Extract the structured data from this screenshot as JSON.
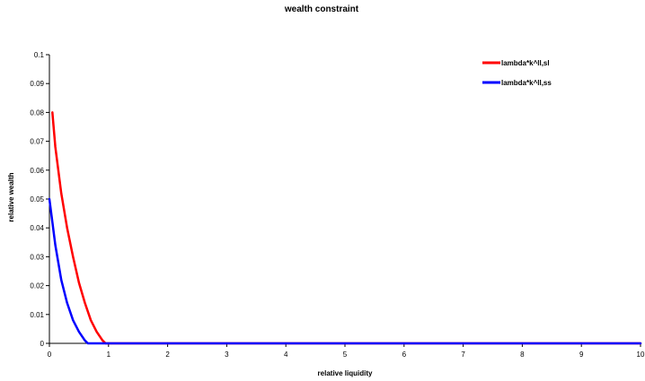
{
  "chart_data": {
    "type": "line",
    "title": "wealth constraint",
    "xlabel": "relative liquidity",
    "ylabel": "relative wealth",
    "xlim": [
      0,
      10
    ],
    "ylim": [
      0,
      0.1
    ],
    "x_ticks": [
      "0",
      "1",
      "2",
      "3",
      "4",
      "5",
      "6",
      "7",
      "8",
      "9",
      "10"
    ],
    "y_ticks": [
      "0",
      "0.01",
      "0.02",
      "0.03",
      "0.04",
      "0.05",
      "0.06",
      "0.07",
      "0.08",
      "0.09",
      "0.1"
    ],
    "grid": false,
    "legend_position": "top-right",
    "series": [
      {
        "name": "lambda*k^ll,sl",
        "color": "#ff0000",
        "x": [
          0.05,
          0.1,
          0.2,
          0.3,
          0.4,
          0.5,
          0.6,
          0.7,
          0.8,
          0.9,
          0.95,
          10
        ],
        "y": [
          0.08,
          0.068,
          0.052,
          0.04,
          0.03,
          0.021,
          0.014,
          0.008,
          0.004,
          0.001,
          0,
          0
        ]
      },
      {
        "name": "lambda*k^ll,ss",
        "color": "#0000ff",
        "x": [
          0,
          0.1,
          0.2,
          0.3,
          0.4,
          0.5,
          0.6,
          0.65,
          10
        ],
        "y": [
          0.05,
          0.034,
          0.022,
          0.014,
          0.008,
          0.004,
          0.001,
          0,
          0
        ]
      }
    ]
  }
}
